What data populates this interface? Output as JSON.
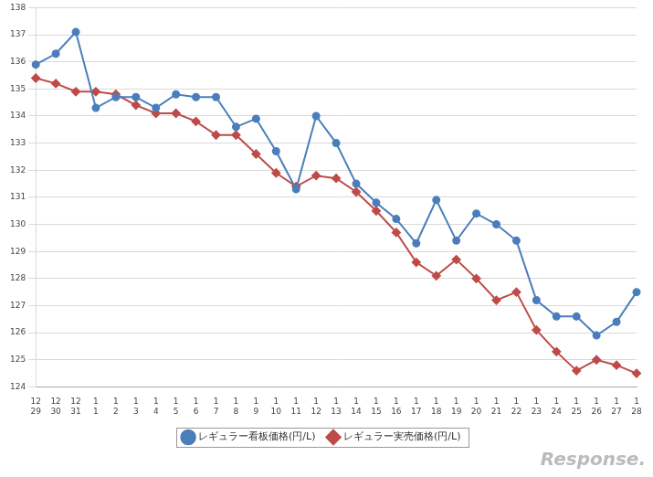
{
  "chart_data": {
    "type": "line",
    "categories": [
      [
        "12",
        "29"
      ],
      [
        "12",
        "30"
      ],
      [
        "12",
        "31"
      ],
      [
        "1",
        "1"
      ],
      [
        "1",
        "2"
      ],
      [
        "1",
        "3"
      ],
      [
        "1",
        "4"
      ],
      [
        "1",
        "5"
      ],
      [
        "1",
        "6"
      ],
      [
        "1",
        "7"
      ],
      [
        "1",
        "8"
      ],
      [
        "1",
        "9"
      ],
      [
        "1",
        "10"
      ],
      [
        "1",
        "11"
      ],
      [
        "1",
        "12"
      ],
      [
        "1",
        "13"
      ],
      [
        "1",
        "14"
      ],
      [
        "1",
        "15"
      ],
      [
        "1",
        "16"
      ],
      [
        "1",
        "17"
      ],
      [
        "1",
        "18"
      ],
      [
        "1",
        "19"
      ],
      [
        "1",
        "20"
      ],
      [
        "1",
        "21"
      ],
      [
        "1",
        "22"
      ],
      [
        "1",
        "23"
      ],
      [
        "1",
        "24"
      ],
      [
        "1",
        "25"
      ],
      [
        "1",
        "26"
      ],
      [
        "1",
        "27"
      ],
      [
        "1",
        "28"
      ]
    ],
    "series": [
      {
        "name": "レギュラー看板価格(円/L)",
        "color": "#4a7ebb",
        "marker": "circle",
        "values": [
          135.9,
          136.3,
          137.1,
          134.3,
          134.7,
          134.7,
          134.3,
          134.8,
          134.7,
          134.7,
          133.6,
          133.9,
          132.7,
          131.3,
          134.0,
          133.0,
          131.5,
          130.8,
          130.2,
          129.3,
          130.9,
          129.4,
          130.4,
          130.0,
          129.4,
          127.2,
          126.6,
          126.6,
          125.9,
          126.4,
          127.5
        ]
      },
      {
        "name": "レギュラー実売価格(円/L)",
        "color": "#be4b48",
        "marker": "diamond",
        "values": [
          135.4,
          135.2,
          134.9,
          134.9,
          134.8,
          134.4,
          134.1,
          134.1,
          133.8,
          133.3,
          133.3,
          132.6,
          131.9,
          131.4,
          131.8,
          131.7,
          131.2,
          130.5,
          129.7,
          128.6,
          128.1,
          128.7,
          128.0,
          127.2,
          127.5,
          126.1,
          125.3,
          124.6,
          125.0,
          124.8,
          124.5
        ]
      }
    ],
    "ylim": [
      124,
      138
    ],
    "yticks": [
      124,
      125,
      126,
      127,
      128,
      129,
      130,
      131,
      132,
      133,
      134,
      135,
      136,
      137,
      138
    ],
    "grid": true,
    "legend": "bottom",
    "annotations": [
      "Response."
    ]
  }
}
